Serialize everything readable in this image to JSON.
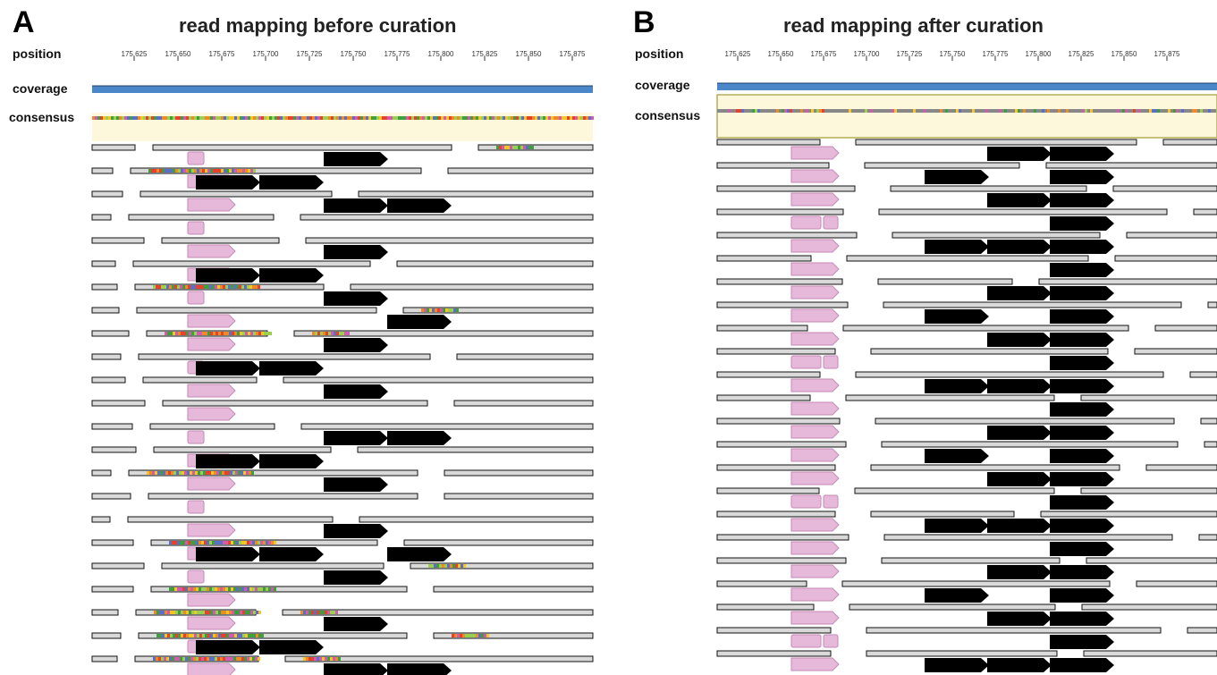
{
  "panels": [
    {
      "letter": "A",
      "title": "read mapping before curation",
      "labels": {
        "position": "position",
        "coverage": "coverage",
        "consensus": "consensus"
      },
      "ticks": [
        "175,625",
        "175,650",
        "175,675",
        "175,700",
        "175,725",
        "175,750",
        "175,775",
        "175,800",
        "175,825",
        "175,850",
        "175,875"
      ],
      "variant": "before"
    },
    {
      "letter": "B",
      "title": "read mapping after curation",
      "labels": {
        "position": "position",
        "coverage": "coverage",
        "consensus": "consensus"
      },
      "ticks": [
        "175,625",
        "175,650",
        "175,675",
        "175,700",
        "175,725",
        "175,750",
        "175,775",
        "175,800",
        "175,825",
        "175,850",
        "175,875"
      ],
      "variant": "after"
    }
  ],
  "colors": {
    "coverage": "#4a86c8",
    "consensus_bg": "#fdf8dc",
    "read_fill": "#d9d9d9",
    "feature_pink": "#e6b8d9",
    "feature_pink_stroke": "#c58ab6",
    "feature_black": "#000000",
    "mismatch": [
      "#e8412b",
      "#f5c623",
      "#3d9f3d",
      "#5b6ec9",
      "#f08a24",
      "#9bcf4f",
      "#d45ab0"
    ]
  }
}
